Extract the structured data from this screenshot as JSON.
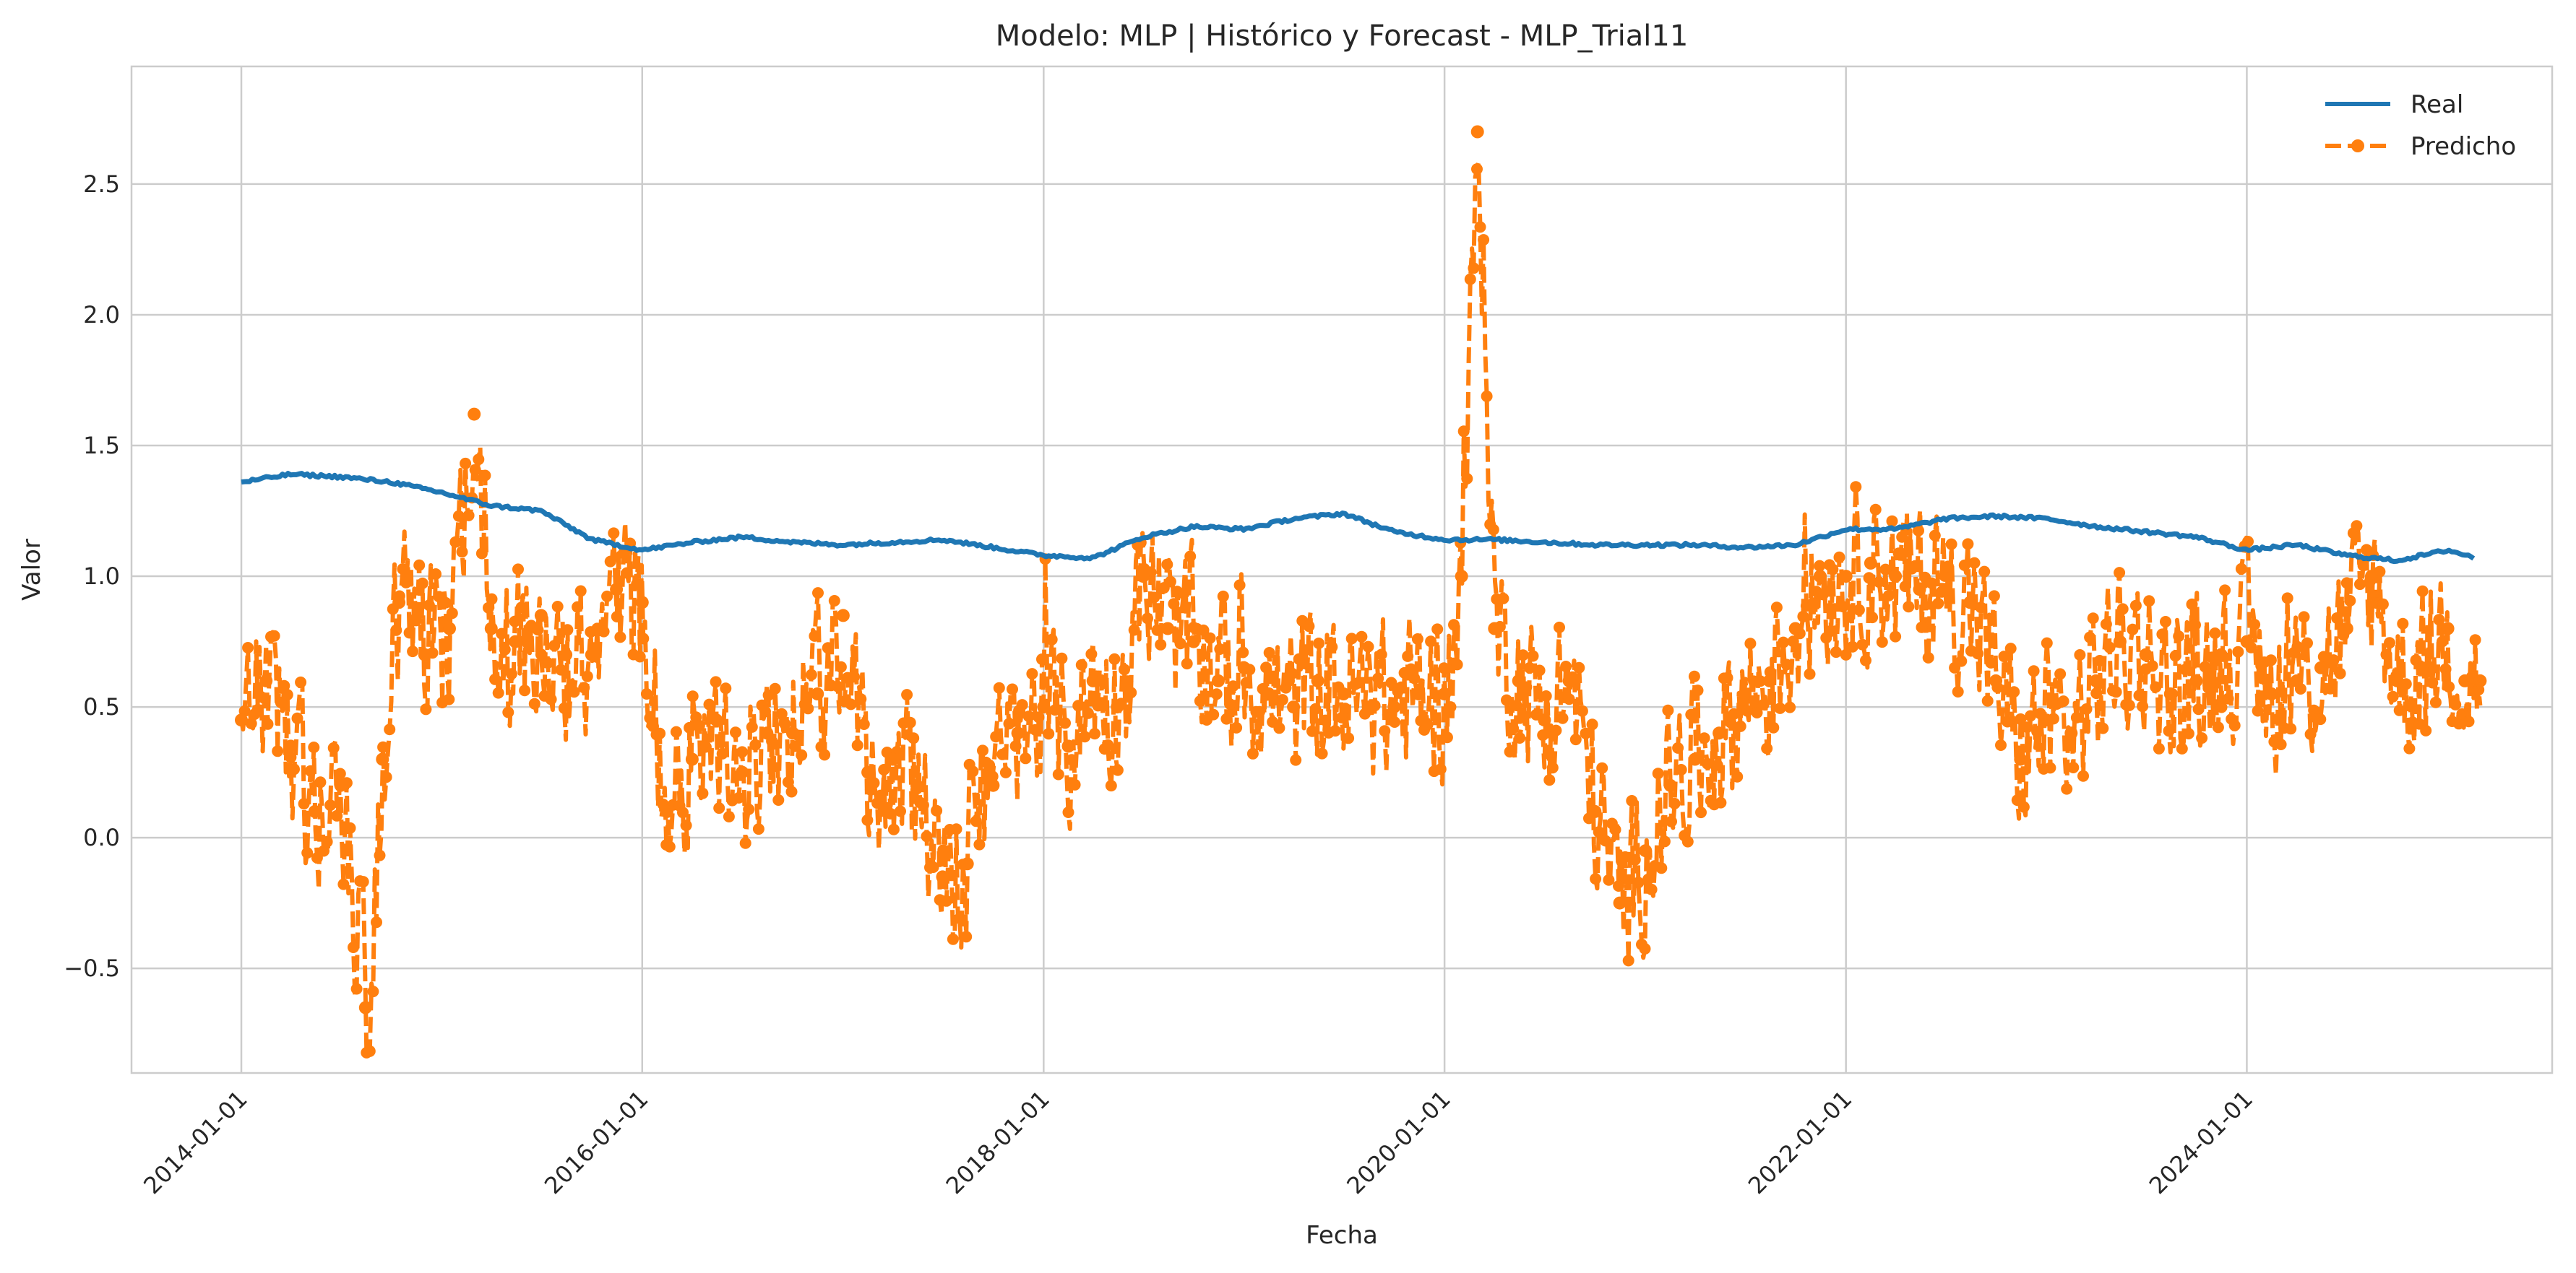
{
  "chart_data": {
    "type": "line",
    "title": "Modelo: MLP | Histórico y Forecast - MLP_Trial11",
    "xlabel": "Fecha",
    "ylabel": "Valor",
    "x_ticks": [
      "2014-01-01",
      "2016-01-01",
      "2018-01-01",
      "2020-01-01",
      "2022-01-01",
      "2024-01-01"
    ],
    "y_ticks": [
      "−0.5",
      "0.0",
      "0.5",
      "1.0",
      "1.5",
      "2.0",
      "2.5"
    ],
    "xlim": [
      "2013-06-15",
      "2025-07-10"
    ],
    "ylim": [
      -0.9,
      2.95
    ],
    "grid": true,
    "legend_position": "top-right",
    "series": [
      {
        "name": "Real",
        "color": "#1f77b4",
        "style": "solid",
        "x": [
          "2014-01-01",
          "2014-04-01",
          "2014-07-01",
          "2014-10-01",
          "2015-01-01",
          "2015-04-01",
          "2015-07-01",
          "2015-10-01",
          "2016-01-01",
          "2016-04-01",
          "2016-07-01",
          "2016-10-01",
          "2017-01-01",
          "2017-04-01",
          "2017-07-01",
          "2017-10-01",
          "2018-01-01",
          "2018-04-01",
          "2018-07-01",
          "2018-10-01",
          "2019-01-01",
          "2019-04-01",
          "2019-07-01",
          "2019-10-01",
          "2020-01-01",
          "2020-04-01",
          "2020-07-01",
          "2020-10-01",
          "2021-01-01",
          "2021-04-01",
          "2021-07-01",
          "2021-10-01",
          "2022-01-01",
          "2022-04-01",
          "2022-07-01",
          "2022-10-01",
          "2023-01-01",
          "2023-04-01",
          "2023-07-01",
          "2023-10-01",
          "2024-01-01",
          "2024-04-01",
          "2024-07-01",
          "2024-10-01",
          "2025-01-01",
          "2025-02-20"
        ],
        "y": [
          1.36,
          1.39,
          1.38,
          1.36,
          1.32,
          1.27,
          1.25,
          1.14,
          1.1,
          1.13,
          1.15,
          1.13,
          1.12,
          1.13,
          1.14,
          1.11,
          1.08,
          1.07,
          1.15,
          1.19,
          1.18,
          1.22,
          1.24,
          1.17,
          1.14,
          1.14,
          1.13,
          1.12,
          1.12,
          1.12,
          1.11,
          1.12,
          1.18,
          1.18,
          1.22,
          1.23,
          1.22,
          1.19,
          1.17,
          1.15,
          1.1,
          1.12,
          1.08,
          1.06,
          1.1,
          1.07
        ]
      },
      {
        "name": "Predicho",
        "color": "#ff7f0e",
        "style": "dashed-markers",
        "x": [
          "2014-01-01",
          "2014-02-15",
          "2014-04-01",
          "2014-05-15",
          "2014-07-01",
          "2014-08-15",
          "2014-09-15",
          "2014-10-15",
          "2014-12-01",
          "2015-01-15",
          "2015-03-01",
          "2015-04-01",
          "2015-05-15",
          "2015-07-01",
          "2015-08-15",
          "2015-10-01",
          "2015-11-15",
          "2016-01-01",
          "2016-02-15",
          "2016-04-01",
          "2016-05-15",
          "2016-07-01",
          "2016-08-15",
          "2016-10-01",
          "2016-11-15",
          "2017-01-01",
          "2017-02-15",
          "2017-04-01",
          "2017-05-15",
          "2017-07-01",
          "2017-08-15",
          "2017-10-01",
          "2017-11-15",
          "2018-01-01",
          "2018-02-15",
          "2018-04-01",
          "2018-05-15",
          "2018-07-01",
          "2018-08-15",
          "2018-10-01",
          "2018-11-15",
          "2019-01-01",
          "2019-02-15",
          "2019-04-01",
          "2019-05-15",
          "2019-07-01",
          "2019-08-15",
          "2019-10-01",
          "2019-11-15",
          "2020-01-01",
          "2020-02-01",
          "2020-03-01",
          "2020-04-01",
          "2020-05-15",
          "2020-07-01",
          "2020-08-15",
          "2020-10-01",
          "2020-11-15",
          "2021-01-01",
          "2021-02-15",
          "2021-04-01",
          "2021-05-15",
          "2021-07-01",
          "2021-08-15",
          "2021-10-01",
          "2021-11-15",
          "2022-01-01",
          "2022-02-15",
          "2022-04-01",
          "2022-05-15",
          "2022-07-01",
          "2022-08-15",
          "2022-10-01",
          "2022-11-15",
          "2023-01-01",
          "2023-02-15",
          "2023-04-01",
          "2023-05-15",
          "2023-07-01",
          "2023-08-15",
          "2023-10-01",
          "2023-11-15",
          "2024-01-01",
          "2024-02-15",
          "2024-04-01",
          "2024-05-15",
          "2024-07-01",
          "2024-08-15",
          "2024-10-01",
          "2024-11-15",
          "2025-01-01",
          "2025-02-01",
          "2025-03-01"
        ],
        "y": [
          0.45,
          0.6,
          0.35,
          0.1,
          0.2,
          -0.65,
          0.3,
          0.9,
          0.7,
          0.8,
          1.62,
          0.8,
          0.75,
          0.85,
          0.7,
          0.7,
          0.95,
          0.9,
          0.1,
          0.3,
          0.45,
          0.25,
          0.4,
          0.4,
          0.55,
          0.85,
          0.25,
          0.3,
          0.2,
          -0.15,
          -0.1,
          0.2,
          0.4,
          0.5,
          0.35,
          0.6,
          0.5,
          1.0,
          0.8,
          0.75,
          0.6,
          0.65,
          0.55,
          0.5,
          0.6,
          0.55,
          0.5,
          0.5,
          0.55,
          0.55,
          1.0,
          2.7,
          0.8,
          0.6,
          0.45,
          0.6,
          0.1,
          -0.25,
          -0.05,
          0.2,
          0.3,
          0.4,
          0.55,
          0.6,
          0.8,
          1.0,
          1.0,
          1.05,
          1.0,
          0.95,
          0.95,
          0.9,
          0.6,
          0.3,
          0.45,
          0.4,
          0.6,
          0.75,
          0.7,
          0.55,
          0.6,
          0.7,
          0.75,
          0.55,
          0.6,
          0.65,
          0.8,
          1.0,
          0.6,
          0.65,
          0.8,
          0.6,
          0.6
        ]
      }
    ]
  }
}
